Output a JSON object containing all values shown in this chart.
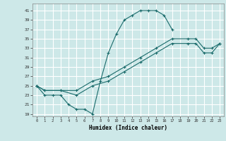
{
  "xlabel": "Humidex (Indice chaleur)",
  "ylabel": "",
  "xlim": [
    -0.5,
    23.5
  ],
  "ylim": [
    18.5,
    42.5
  ],
  "xticks": [
    0,
    1,
    2,
    3,
    4,
    5,
    6,
    7,
    8,
    9,
    10,
    11,
    12,
    13,
    14,
    15,
    16,
    17,
    18,
    19,
    20,
    21,
    22,
    23
  ],
  "yticks": [
    19,
    21,
    23,
    25,
    27,
    29,
    31,
    33,
    35,
    37,
    39,
    41
  ],
  "bg_color": "#cde8e8",
  "grid_color": "#ffffff",
  "line_color": "#1a6b6b",
  "line1_x": [
    0,
    1,
    2,
    3,
    4,
    5,
    6,
    7,
    8,
    9,
    10,
    11,
    12,
    13,
    14,
    15,
    16,
    17
  ],
  "line1_y": [
    25,
    23,
    23,
    23,
    21,
    20,
    20,
    19,
    26,
    32,
    36,
    39,
    40,
    41,
    41,
    41,
    40,
    37
  ],
  "line2_x": [
    0,
    1,
    3,
    5,
    7,
    9,
    11,
    13,
    15,
    17,
    19,
    20,
    21,
    22,
    23
  ],
  "line2_y": [
    25,
    24,
    24,
    24,
    26,
    27,
    29,
    31,
    33,
    35,
    35,
    35,
    33,
    33,
    34
  ],
  "line3_x": [
    0,
    1,
    3,
    5,
    7,
    9,
    11,
    13,
    15,
    17,
    19,
    20,
    21,
    22,
    23
  ],
  "line3_y": [
    25,
    24,
    24,
    23,
    25,
    26,
    28,
    30,
    32,
    34,
    34,
    34,
    32,
    32,
    34
  ]
}
